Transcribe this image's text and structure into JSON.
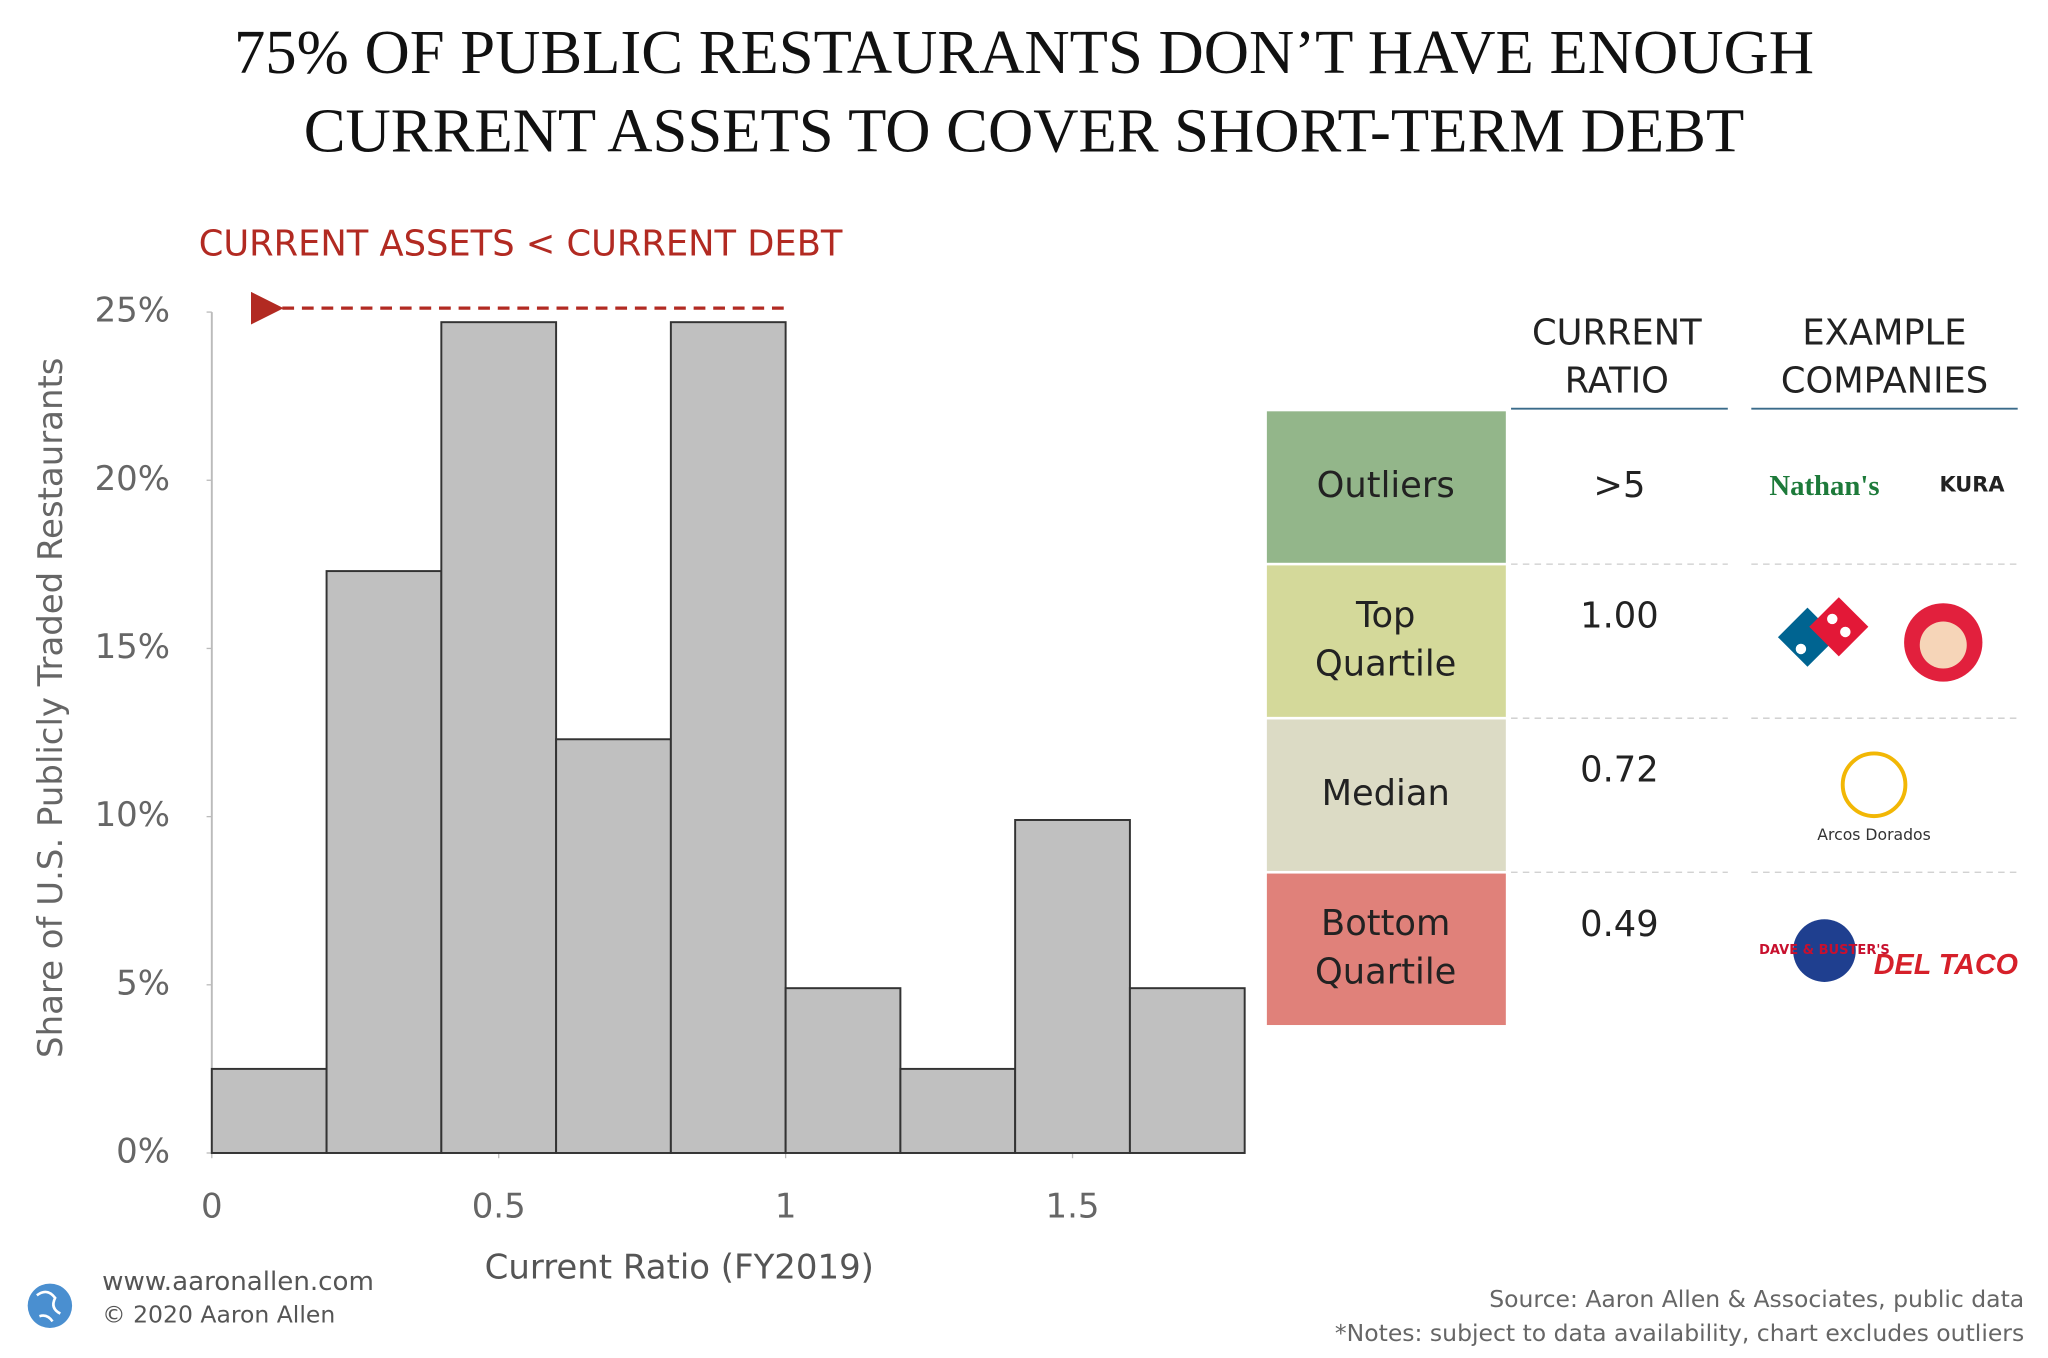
{
  "chart_data": {
    "type": "histogram",
    "title": [
      "75% OF PUBLIC RESTAURANTS DON’T HAVE ENOUGH",
      "CURRENT ASSETS TO COVER SHORT-TERM DEBT"
    ],
    "annotation": "CURRENT ASSETS < CURRENT DEBT",
    "x_label": "Current Ratio (FY2019)",
    "y_label": "Share of U.S. Publicly Traded Restaurants",
    "bins": [
      0,
      0.2,
      0.4,
      0.6,
      0.8,
      1,
      1.2,
      1.4,
      1.6,
      1.8
    ],
    "values": [
      2.5,
      17.3,
      24.7,
      12.3,
      24.7,
      4.9,
      2.5,
      9.9,
      4.9
    ],
    "color": "#c0c0c0",
    "xlim": [
      0,
      1.8
    ],
    "xticks": [
      0,
      0.5,
      1,
      1.5
    ],
    "ylim": [
      0,
      25
    ],
    "yticks": [
      {
        "value": 0,
        "label": "0%"
      },
      {
        "value": 5,
        "label": "5%"
      },
      {
        "value": 10,
        "label": "10%"
      },
      {
        "value": 15,
        "label": "15%"
      },
      {
        "value": 20,
        "label": "20%"
      },
      {
        "value": 25,
        "label": "25%"
      }
    ]
  },
  "table": {
    "headers": [
      [
        "CURRENT",
        "RATIO"
      ],
      [
        "EXAMPLE",
        "COMPANIES"
      ]
    ],
    "rows": [
      {
        "tier": [
          "Outliers"
        ],
        "ratio": ">5",
        "color": "#93b68a",
        "logos": [
          "Nathan's",
          "KURA"
        ]
      },
      {
        "tier": [
          "Top",
          "Quartile"
        ],
        "ratio": "1.00",
        "color": "#d4d99a",
        "logos": []
      },
      {
        "tier": [
          "Median"
        ],
        "ratio": "0.72",
        "color": "#dcdbc5",
        "logos": [
          "Arcos Dorados"
        ]
      },
      {
        "tier": [
          "Bottom",
          "Quartile"
        ],
        "ratio": "0.49",
        "color": "#e0817a",
        "logos": [
          "DAVE & BUSTER'S",
          "DEL TACO"
        ]
      }
    ]
  },
  "footer": {
    "website": "www.aaronallen.com",
    "copyright": "© 2020 Aaron Allen",
    "source": "Source: Aaron Allen & Associates, public data",
    "notes": "*Notes: subject to data availability, chart excludes outliers"
  }
}
